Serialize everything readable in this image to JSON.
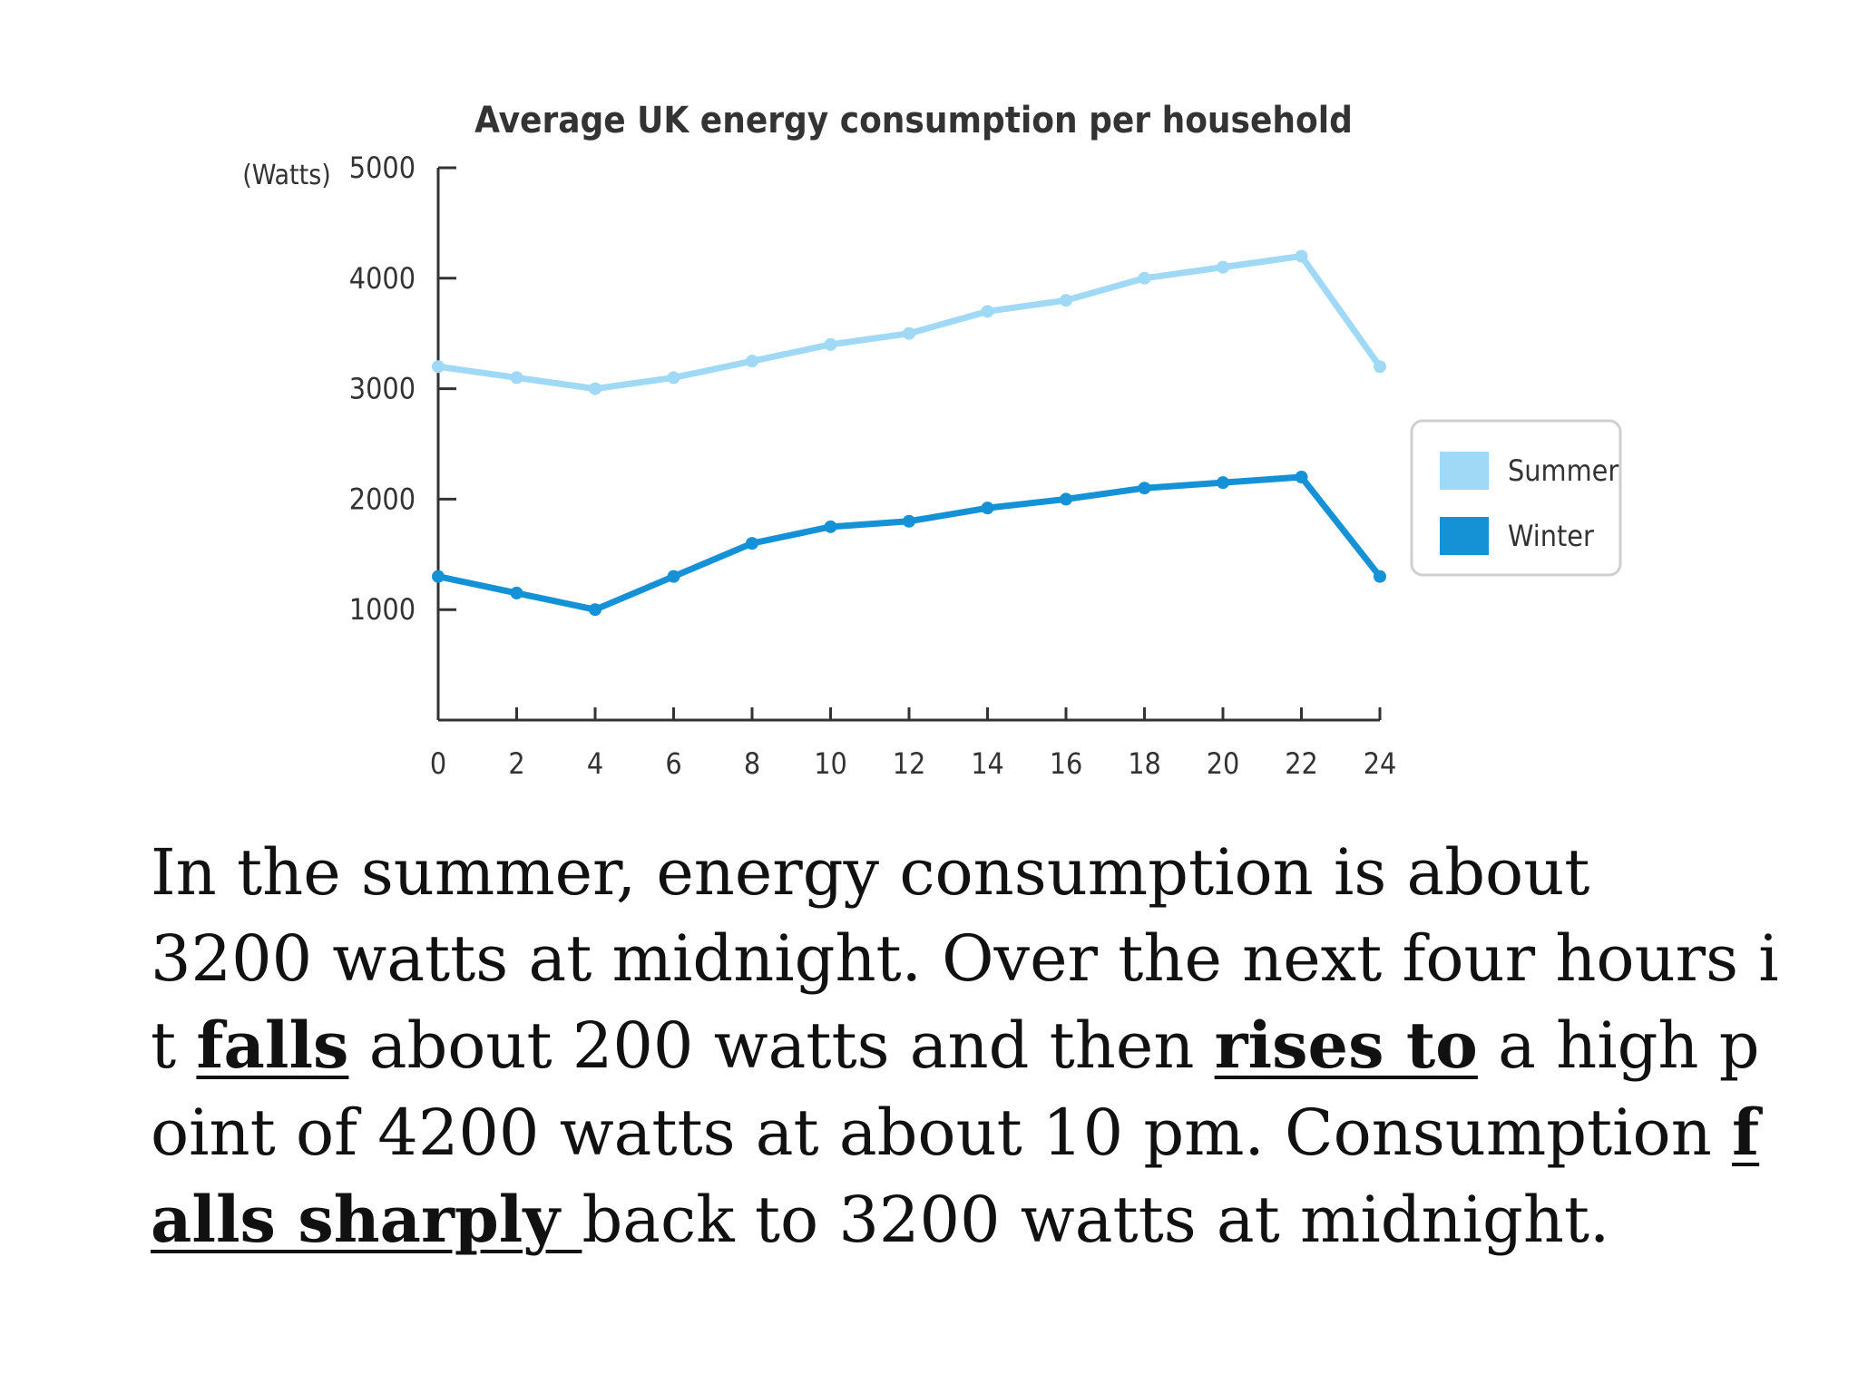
{
  "colors": {
    "summer": "#9fd9f5",
    "winter": "#1592d6",
    "axis": "#333333",
    "text": "#111111"
  },
  "chart_data": {
    "type": "line",
    "title": "Average UK energy consumption per household",
    "ylabel": "(Watts)",
    "xlabel": "",
    "x": [
      0,
      2,
      4,
      6,
      8,
      10,
      12,
      14,
      16,
      18,
      20,
      22,
      24
    ],
    "xlim": [
      0,
      24
    ],
    "ylim": [
      0,
      5000
    ],
    "yticks": [
      1000,
      2000,
      3000,
      4000,
      5000
    ],
    "grid": false,
    "legend_position": "right",
    "series": [
      {
        "name": "Summer",
        "color": "#9fd9f5",
        "values": [
          3200,
          3100,
          3000,
          3100,
          3250,
          3400,
          3500,
          3700,
          3800,
          4000,
          4100,
          4200,
          3200
        ]
      },
      {
        "name": "Winter",
        "color": "#1592d6",
        "values": [
          1300,
          1150,
          1000,
          1300,
          1600,
          1750,
          1800,
          1920,
          2000,
          2100,
          2150,
          2200,
          1300
        ]
      }
    ]
  },
  "paragraph": {
    "lines": [
      [
        {
          "text": "In the summer, energy consumption is about",
          "emph": false
        }
      ],
      [
        {
          "text": "3200 watts at midnight. Over the next four hours i",
          "emph": false
        }
      ],
      [
        {
          "text": "t ",
          "emph": false
        },
        {
          "text": "falls",
          "emph": true
        },
        {
          "text": " about 200 watts and then ",
          "emph": false
        },
        {
          "text": "rises to",
          "emph": true
        },
        {
          "text": " a high p",
          "emph": false
        }
      ],
      [
        {
          "text": "oint of 4200 watts at about 10 pm. Consumption ",
          "emph": false
        },
        {
          "text": "f",
          "emph": true
        }
      ],
      [
        {
          "text": "alls sharply ",
          "emph": true
        },
        {
          "text": "back to 3200 watts at midnight.",
          "emph": false
        }
      ]
    ]
  }
}
